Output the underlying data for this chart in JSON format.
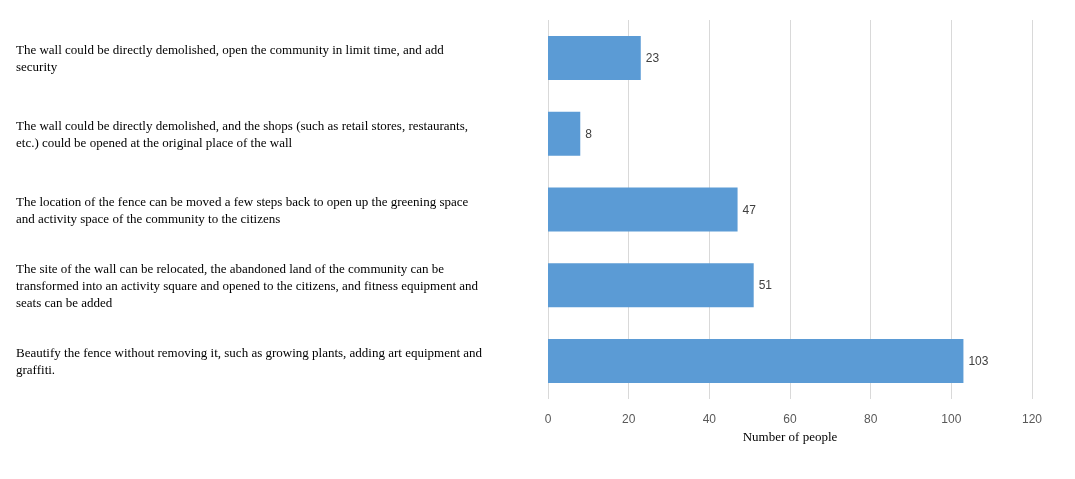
{
  "chart_data": {
    "type": "bar",
    "orientation": "horizontal",
    "categories": [
      "The wall could be directly demolished, open the community in limit time, and add security",
      "The wall could be directly demolished, and the shops (such as retail stores, restaurants, etc.) could be opened at the original place of the wall",
      "The location of the fence can be moved a few steps back to open up the greening space and activity space of the community to the citizens",
      "The site of the wall can be relocated, the abandoned land of the community can be transformed into an activity square and opened to the citizens, and fitness equipment and seats can be added",
      "Beautify the fence without removing it, such as growing plants, adding art equipment and graffiti."
    ],
    "values": [
      23,
      8,
      47,
      51,
      103
    ],
    "color": "#5b9bd5",
    "xlabel": "Number of people",
    "xlim": [
      0,
      120
    ],
    "xticks": [
      0,
      20,
      40,
      60,
      80,
      100,
      120
    ],
    "grid": "x",
    "data_labels": true
  }
}
